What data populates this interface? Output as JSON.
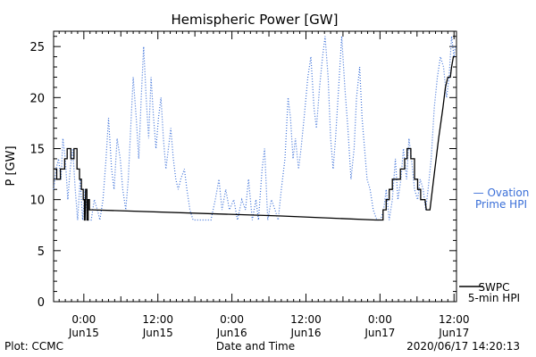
{
  "chart_data": {
    "type": "line",
    "title": "Hemispheric Power [GW]",
    "xlabel": "Date and Time",
    "ylabel": "P [GW]",
    "ylim": [
      0,
      26.5
    ],
    "y_ticks": [
      0,
      5,
      10,
      15,
      20,
      25
    ],
    "x_unit": "hours since 2020-06-14 00:00 UT",
    "xlim": [
      19.1,
      84.4
    ],
    "x_ticks": [
      {
        "x": 24,
        "line1": "0:00",
        "line2": "Jun15"
      },
      {
        "x": 36,
        "line1": "12:00",
        "line2": "Jun15"
      },
      {
        "x": 48,
        "line1": "0:00",
        "line2": "Jun16"
      },
      {
        "x": 60,
        "line1": "12:00",
        "line2": "Jun16"
      },
      {
        "x": 72,
        "line1": "0:00",
        "line2": "Jun17"
      },
      {
        "x": 84,
        "line1": "12:00",
        "line2": "Jun17"
      }
    ],
    "grid": false,
    "legend_position": "right",
    "series": [
      {
        "name": "SWPC 5-min HPI",
        "legend_line1": "SWPC",
        "legend_line2": "5-min HPI",
        "color": "#000000",
        "style": "solid",
        "points": [
          [
            19.1,
            13
          ],
          [
            19.6,
            13
          ],
          [
            19.6,
            12
          ],
          [
            20.2,
            12
          ],
          [
            20.2,
            13
          ],
          [
            20.9,
            13
          ],
          [
            20.9,
            14
          ],
          [
            21.3,
            14
          ],
          [
            21.3,
            15
          ],
          [
            21.9,
            15
          ],
          [
            21.9,
            14
          ],
          [
            22.4,
            14
          ],
          [
            22.4,
            15
          ],
          [
            22.9,
            15
          ],
          [
            22.9,
            13
          ],
          [
            23.3,
            13
          ],
          [
            23.3,
            12
          ],
          [
            23.6,
            12
          ],
          [
            23.6,
            11
          ],
          [
            23.9,
            11
          ],
          [
            23.9,
            10
          ],
          [
            24.1,
            10
          ],
          [
            24.1,
            8
          ],
          [
            24.2,
            8
          ],
          [
            24.3,
            11
          ],
          [
            24.5,
            11
          ],
          [
            24.5,
            8
          ],
          [
            24.7,
            8
          ],
          [
            24.7,
            10
          ],
          [
            24.9,
            10
          ],
          [
            24.9,
            9
          ],
          [
            25.3,
            9
          ],
          [
            56.0,
            8.4
          ],
          [
            71.3,
            8.0
          ],
          [
            72.5,
            8.0
          ],
          [
            72.5,
            9
          ],
          [
            73.0,
            9
          ],
          [
            73.0,
            10
          ],
          [
            73.5,
            10
          ],
          [
            73.5,
            11
          ],
          [
            74.0,
            11
          ],
          [
            74.0,
            12
          ],
          [
            75.3,
            12
          ],
          [
            75.3,
            13
          ],
          [
            76.0,
            13
          ],
          [
            76.0,
            14
          ],
          [
            76.4,
            14
          ],
          [
            76.4,
            15
          ],
          [
            77.0,
            15
          ],
          [
            77.0,
            14
          ],
          [
            77.6,
            14
          ],
          [
            77.6,
            12
          ],
          [
            78.1,
            12
          ],
          [
            78.1,
            11
          ],
          [
            78.6,
            11
          ],
          [
            78.6,
            10
          ],
          [
            79.3,
            10
          ],
          [
            79.5,
            9
          ],
          [
            80.1,
            9
          ],
          [
            80.7,
            12
          ],
          [
            81.5,
            16
          ],
          [
            82.2,
            19
          ],
          [
            82.6,
            21
          ],
          [
            83.0,
            22
          ],
          [
            83.4,
            22
          ],
          [
            83.6,
            23
          ],
          [
            83.9,
            24
          ],
          [
            84.1,
            24
          ]
        ]
      },
      {
        "name": "Ovation Prime HPI",
        "legend_line1": "— Ovation",
        "legend_line2": "Prime HPI",
        "color": "#3a6fd8",
        "style": "dotted",
        "points": [
          [
            19.1,
            11
          ],
          [
            19.5,
            13
          ],
          [
            19.9,
            14
          ],
          [
            20.3,
            12
          ],
          [
            20.6,
            16
          ],
          [
            21.0,
            14
          ],
          [
            21.4,
            10
          ],
          [
            21.8,
            13
          ],
          [
            22.2,
            15
          ],
          [
            22.6,
            11
          ],
          [
            23.0,
            8
          ],
          [
            23.4,
            12
          ],
          [
            23.8,
            8
          ],
          [
            24.2,
            11
          ],
          [
            24.6,
            8
          ],
          [
            25.2,
            8
          ],
          [
            25.7,
            10
          ],
          [
            26.2,
            9
          ],
          [
            26.6,
            8
          ],
          [
            27.1,
            10
          ],
          [
            27.6,
            14
          ],
          [
            28.0,
            18
          ],
          [
            28.5,
            13
          ],
          [
            28.9,
            11
          ],
          [
            29.4,
            16
          ],
          [
            29.9,
            14
          ],
          [
            30.3,
            11
          ],
          [
            30.8,
            9
          ],
          [
            31.2,
            12
          ],
          [
            31.6,
            17
          ],
          [
            32.0,
            22
          ],
          [
            32.5,
            18
          ],
          [
            32.9,
            14
          ],
          [
            33.3,
            20
          ],
          [
            33.7,
            25
          ],
          [
            34.1,
            20
          ],
          [
            34.5,
            16
          ],
          [
            34.9,
            22
          ],
          [
            35.3,
            18
          ],
          [
            35.7,
            15
          ],
          [
            36.1,
            18
          ],
          [
            36.5,
            20
          ],
          [
            36.9,
            16
          ],
          [
            37.3,
            13
          ],
          [
            37.7,
            15
          ],
          [
            38.1,
            17
          ],
          [
            38.5,
            14
          ],
          [
            38.9,
            12
          ],
          [
            39.3,
            11
          ],
          [
            39.7,
            12
          ],
          [
            40.3,
            13
          ],
          [
            40.7,
            11
          ],
          [
            41.2,
            9
          ],
          [
            41.7,
            8
          ],
          [
            42.3,
            8
          ],
          [
            43.0,
            8
          ],
          [
            43.8,
            8
          ],
          [
            44.6,
            8
          ],
          [
            45.3,
            10
          ],
          [
            45.9,
            12
          ],
          [
            46.4,
            9
          ],
          [
            47.0,
            11
          ],
          [
            47.6,
            9
          ],
          [
            48.3,
            10
          ],
          [
            48.9,
            8
          ],
          [
            49.6,
            10
          ],
          [
            50.2,
            9
          ],
          [
            50.7,
            12
          ],
          [
            51.3,
            8
          ],
          [
            51.9,
            10
          ],
          [
            52.3,
            8
          ],
          [
            52.9,
            13
          ],
          [
            53.3,
            15
          ],
          [
            53.8,
            8
          ],
          [
            54.4,
            10
          ],
          [
            55.0,
            9
          ],
          [
            55.5,
            8
          ],
          [
            56.0,
            11
          ],
          [
            56.6,
            14
          ],
          [
            57.1,
            20
          ],
          [
            57.5,
            18
          ],
          [
            57.9,
            14
          ],
          [
            58.3,
            16
          ],
          [
            58.8,
            13
          ],
          [
            59.2,
            15
          ],
          [
            59.7,
            18
          ],
          [
            60.3,
            22
          ],
          [
            60.8,
            24
          ],
          [
            61.3,
            19
          ],
          [
            61.7,
            17
          ],
          [
            62.2,
            21
          ],
          [
            62.7,
            24
          ],
          [
            63.1,
            26
          ],
          [
            63.6,
            22
          ],
          [
            64.0,
            16
          ],
          [
            64.4,
            13
          ],
          [
            64.8,
            16
          ],
          [
            65.3,
            21
          ],
          [
            65.8,
            26
          ],
          [
            66.3,
            21
          ],
          [
            66.8,
            17
          ],
          [
            67.3,
            12
          ],
          [
            67.8,
            15
          ],
          [
            68.2,
            20
          ],
          [
            68.7,
            23
          ],
          [
            69.1,
            18
          ],
          [
            69.5,
            15
          ],
          [
            69.9,
            12
          ],
          [
            70.4,
            11
          ],
          [
            70.9,
            9
          ],
          [
            71.5,
            8
          ],
          [
            72.1,
            8
          ],
          [
            72.6,
            9
          ],
          [
            73.0,
            11
          ],
          [
            73.5,
            8
          ],
          [
            74.0,
            10
          ],
          [
            74.5,
            14
          ],
          [
            74.9,
            10
          ],
          [
            75.4,
            12
          ],
          [
            75.8,
            15
          ],
          [
            76.3,
            12
          ],
          [
            76.7,
            16
          ],
          [
            77.1,
            14
          ],
          [
            77.6,
            11
          ],
          [
            78.1,
            10
          ],
          [
            78.5,
            12
          ],
          [
            79.0,
            11
          ],
          [
            79.4,
            9
          ],
          [
            79.8,
            11
          ],
          [
            80.3,
            14
          ],
          [
            80.8,
            19
          ],
          [
            81.3,
            22
          ],
          [
            81.8,
            24
          ],
          [
            82.3,
            23
          ],
          [
            82.8,
            20
          ],
          [
            83.2,
            22
          ],
          [
            83.6,
            26
          ],
          [
            84.0,
            24
          ],
          [
            84.2,
            25
          ]
        ]
      }
    ]
  },
  "footer": {
    "plot_credit": "Plot: CCMC",
    "timestamp": "2020/06/17 14:20:13"
  }
}
